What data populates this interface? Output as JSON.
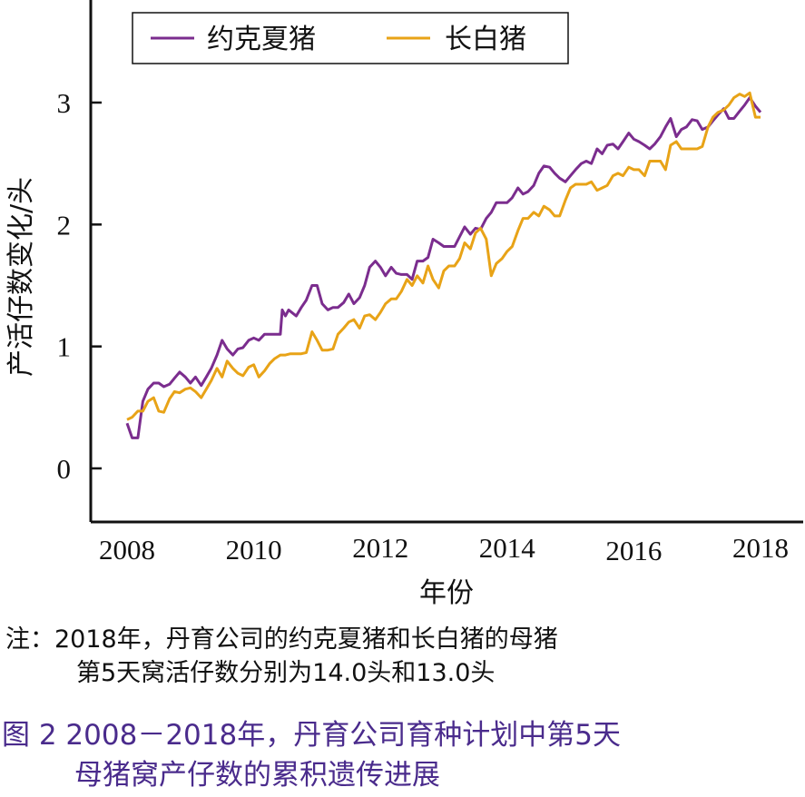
{
  "chart_data": {
    "type": "line",
    "xlabel": "年份",
    "ylabel": "产活仔数变化/头",
    "xlim": [
      2008,
      2018
    ],
    "ylim": [
      -0.45,
      3.6
    ],
    "x_ticks": [
      "2008",
      "2010",
      "2012",
      "2014",
      "2016",
      "2018"
    ],
    "y_ticks": [
      "0",
      "1",
      "2",
      "3"
    ],
    "legend_position": "top",
    "grid": false,
    "series": [
      {
        "name": "约克夏猪",
        "color": "#7b2d8e",
        "points": [
          [
            2008.0,
            0.37
          ],
          [
            2008.08,
            0.25
          ],
          [
            2008.17,
            0.25
          ],
          [
            2008.25,
            0.55
          ],
          [
            2008.33,
            0.65
          ],
          [
            2008.42,
            0.7
          ],
          [
            2008.5,
            0.7
          ],
          [
            2008.58,
            0.67
          ],
          [
            2008.67,
            0.69
          ],
          [
            2008.75,
            0.74
          ],
          [
            2008.83,
            0.79
          ],
          [
            2008.92,
            0.75
          ],
          [
            2009.0,
            0.7
          ],
          [
            2009.08,
            0.75
          ],
          [
            2009.17,
            0.68
          ],
          [
            2009.25,
            0.75
          ],
          [
            2009.33,
            0.82
          ],
          [
            2009.42,
            0.93
          ],
          [
            2009.5,
            1.05
          ],
          [
            2009.58,
            0.98
          ],
          [
            2009.67,
            0.93
          ],
          [
            2009.75,
            0.98
          ],
          [
            2009.83,
            0.99
          ],
          [
            2009.92,
            1.05
          ],
          [
            2010.0,
            1.07
          ],
          [
            2010.08,
            1.05
          ],
          [
            2010.17,
            1.1
          ],
          [
            2010.25,
            1.1
          ],
          [
            2010.33,
            1.1
          ],
          [
            2010.42,
            1.1
          ],
          [
            2010.45,
            1.3
          ],
          [
            2010.5,
            1.25
          ],
          [
            2010.55,
            1.3
          ],
          [
            2010.67,
            1.25
          ],
          [
            2010.75,
            1.32
          ],
          [
            2010.83,
            1.38
          ],
          [
            2010.92,
            1.5
          ],
          [
            2011.0,
            1.5
          ],
          [
            2011.08,
            1.35
          ],
          [
            2011.17,
            1.3
          ],
          [
            2011.25,
            1.32
          ],
          [
            2011.33,
            1.32
          ],
          [
            2011.42,
            1.36
          ],
          [
            2011.5,
            1.43
          ],
          [
            2011.58,
            1.35
          ],
          [
            2011.67,
            1.4
          ],
          [
            2011.75,
            1.5
          ],
          [
            2011.83,
            1.65
          ],
          [
            2011.92,
            1.7
          ],
          [
            2012.0,
            1.65
          ],
          [
            2012.08,
            1.58
          ],
          [
            2012.17,
            1.65
          ],
          [
            2012.25,
            1.6
          ],
          [
            2012.33,
            1.59
          ],
          [
            2012.42,
            1.59
          ],
          [
            2012.5,
            1.55
          ],
          [
            2012.58,
            1.7
          ],
          [
            2012.67,
            1.7
          ],
          [
            2012.75,
            1.73
          ],
          [
            2012.83,
            1.88
          ],
          [
            2012.92,
            1.85
          ],
          [
            2013.0,
            1.82
          ],
          [
            2013.08,
            1.82
          ],
          [
            2013.17,
            1.82
          ],
          [
            2013.25,
            1.9
          ],
          [
            2013.33,
            1.98
          ],
          [
            2013.42,
            1.92
          ],
          [
            2013.5,
            1.97
          ],
          [
            2013.58,
            1.96
          ],
          [
            2013.67,
            2.05
          ],
          [
            2013.75,
            2.1
          ],
          [
            2013.83,
            2.18
          ],
          [
            2013.92,
            2.18
          ],
          [
            2014.0,
            2.18
          ],
          [
            2014.08,
            2.22
          ],
          [
            2014.17,
            2.3
          ],
          [
            2014.25,
            2.25
          ],
          [
            2014.33,
            2.27
          ],
          [
            2014.42,
            2.32
          ],
          [
            2014.5,
            2.42
          ],
          [
            2014.58,
            2.48
          ],
          [
            2014.67,
            2.47
          ],
          [
            2014.75,
            2.42
          ],
          [
            2014.83,
            2.38
          ],
          [
            2014.92,
            2.35
          ],
          [
            2015.0,
            2.4
          ],
          [
            2015.08,
            2.45
          ],
          [
            2015.17,
            2.5
          ],
          [
            2015.25,
            2.52
          ],
          [
            2015.33,
            2.5
          ],
          [
            2015.42,
            2.62
          ],
          [
            2015.5,
            2.58
          ],
          [
            2015.58,
            2.65
          ],
          [
            2015.67,
            2.66
          ],
          [
            2015.75,
            2.62
          ],
          [
            2015.83,
            2.68
          ],
          [
            2015.92,
            2.75
          ],
          [
            2016.0,
            2.7
          ],
          [
            2016.08,
            2.68
          ],
          [
            2016.17,
            2.65
          ],
          [
            2016.25,
            2.62
          ],
          [
            2016.33,
            2.66
          ],
          [
            2016.42,
            2.72
          ],
          [
            2016.5,
            2.8
          ],
          [
            2016.58,
            2.87
          ],
          [
            2016.67,
            2.72
          ],
          [
            2016.75,
            2.78
          ],
          [
            2016.83,
            2.8
          ],
          [
            2016.92,
            2.86
          ],
          [
            2017.0,
            2.85
          ],
          [
            2017.08,
            2.78
          ],
          [
            2017.17,
            2.8
          ],
          [
            2017.25,
            2.85
          ],
          [
            2017.33,
            2.9
          ],
          [
            2017.42,
            2.95
          ],
          [
            2017.5,
            2.87
          ],
          [
            2017.58,
            2.87
          ],
          [
            2017.67,
            2.93
          ],
          [
            2017.75,
            2.98
          ],
          [
            2017.83,
            3.04
          ],
          [
            2017.92,
            2.97
          ],
          [
            2018.0,
            2.92
          ]
        ]
      },
      {
        "name": "长白猪",
        "color": "#e8a317",
        "points": [
          [
            2008.0,
            0.4
          ],
          [
            2008.08,
            0.42
          ],
          [
            2008.17,
            0.47
          ],
          [
            2008.25,
            0.47
          ],
          [
            2008.33,
            0.55
          ],
          [
            2008.42,
            0.58
          ],
          [
            2008.5,
            0.47
          ],
          [
            2008.58,
            0.46
          ],
          [
            2008.67,
            0.57
          ],
          [
            2008.75,
            0.63
          ],
          [
            2008.83,
            0.62
          ],
          [
            2008.92,
            0.65
          ],
          [
            2009.0,
            0.66
          ],
          [
            2009.08,
            0.63
          ],
          [
            2009.17,
            0.58
          ],
          [
            2009.25,
            0.65
          ],
          [
            2009.33,
            0.72
          ],
          [
            2009.42,
            0.82
          ],
          [
            2009.5,
            0.75
          ],
          [
            2009.58,
            0.88
          ],
          [
            2009.67,
            0.82
          ],
          [
            2009.75,
            0.78
          ],
          [
            2009.83,
            0.76
          ],
          [
            2009.92,
            0.83
          ],
          [
            2010.0,
            0.85
          ],
          [
            2010.08,
            0.75
          ],
          [
            2010.17,
            0.8
          ],
          [
            2010.25,
            0.86
          ],
          [
            2010.33,
            0.9
          ],
          [
            2010.42,
            0.93
          ],
          [
            2010.5,
            0.93
          ],
          [
            2010.58,
            0.94
          ],
          [
            2010.67,
            0.94
          ],
          [
            2010.75,
            0.94
          ],
          [
            2010.83,
            0.95
          ],
          [
            2010.92,
            1.12
          ],
          [
            2011.0,
            1.05
          ],
          [
            2011.08,
            0.97
          ],
          [
            2011.17,
            0.97
          ],
          [
            2011.25,
            0.98
          ],
          [
            2011.33,
            1.1
          ],
          [
            2011.42,
            1.15
          ],
          [
            2011.5,
            1.2
          ],
          [
            2011.58,
            1.22
          ],
          [
            2011.67,
            1.15
          ],
          [
            2011.75,
            1.25
          ],
          [
            2011.83,
            1.26
          ],
          [
            2011.92,
            1.22
          ],
          [
            2012.0,
            1.28
          ],
          [
            2012.08,
            1.35
          ],
          [
            2012.17,
            1.39
          ],
          [
            2012.25,
            1.39
          ],
          [
            2012.33,
            1.45
          ],
          [
            2012.42,
            1.55
          ],
          [
            2012.5,
            1.5
          ],
          [
            2012.58,
            1.58
          ],
          [
            2012.67,
            1.52
          ],
          [
            2012.75,
            1.66
          ],
          [
            2012.83,
            1.55
          ],
          [
            2012.92,
            1.48
          ],
          [
            2013.0,
            1.62
          ],
          [
            2013.08,
            1.66
          ],
          [
            2013.17,
            1.66
          ],
          [
            2013.25,
            1.72
          ],
          [
            2013.33,
            1.85
          ],
          [
            2013.42,
            1.8
          ],
          [
            2013.5,
            1.93
          ],
          [
            2013.58,
            1.97
          ],
          [
            2013.67,
            1.88
          ],
          [
            2013.75,
            1.58
          ],
          [
            2013.83,
            1.68
          ],
          [
            2013.92,
            1.72
          ],
          [
            2014.0,
            1.78
          ],
          [
            2014.08,
            1.82
          ],
          [
            2014.17,
            1.95
          ],
          [
            2014.25,
            2.05
          ],
          [
            2014.33,
            2.05
          ],
          [
            2014.42,
            2.1
          ],
          [
            2014.5,
            2.07
          ],
          [
            2014.58,
            2.15
          ],
          [
            2014.67,
            2.12
          ],
          [
            2014.75,
            2.07
          ],
          [
            2014.83,
            2.07
          ],
          [
            2014.92,
            2.2
          ],
          [
            2015.0,
            2.3
          ],
          [
            2015.08,
            2.33
          ],
          [
            2015.17,
            2.33
          ],
          [
            2015.25,
            2.33
          ],
          [
            2015.33,
            2.35
          ],
          [
            2015.42,
            2.28
          ],
          [
            2015.5,
            2.3
          ],
          [
            2015.58,
            2.32
          ],
          [
            2015.67,
            2.4
          ],
          [
            2015.75,
            2.42
          ],
          [
            2015.83,
            2.4
          ],
          [
            2015.92,
            2.47
          ],
          [
            2016.0,
            2.45
          ],
          [
            2016.08,
            2.45
          ],
          [
            2016.17,
            2.4
          ],
          [
            2016.25,
            2.52
          ],
          [
            2016.33,
            2.52
          ],
          [
            2016.42,
            2.52
          ],
          [
            2016.5,
            2.45
          ],
          [
            2016.58,
            2.65
          ],
          [
            2016.67,
            2.68
          ],
          [
            2016.75,
            2.62
          ],
          [
            2016.83,
            2.62
          ],
          [
            2016.92,
            2.62
          ],
          [
            2017.0,
            2.62
          ],
          [
            2017.08,
            2.64
          ],
          [
            2017.17,
            2.8
          ],
          [
            2017.25,
            2.88
          ],
          [
            2017.33,
            2.92
          ],
          [
            2017.42,
            2.94
          ],
          [
            2017.5,
            2.98
          ],
          [
            2017.58,
            3.04
          ],
          [
            2017.67,
            3.07
          ],
          [
            2017.75,
            3.05
          ],
          [
            2017.83,
            3.08
          ],
          [
            2017.92,
            2.88
          ],
          [
            2018.0,
            2.88
          ]
        ]
      }
    ]
  },
  "note": {
    "line1": "注：2018年，丹育公司的约克夏猪和长白猪的母猪",
    "line2": "第5天窝活仔数分别为14.0头和13.0头"
  },
  "caption": {
    "line1": "图 2  2008－2018年，丹育公司育种计划中第5天",
    "line2": "母猪窝产仔数的累积遗传进展"
  }
}
